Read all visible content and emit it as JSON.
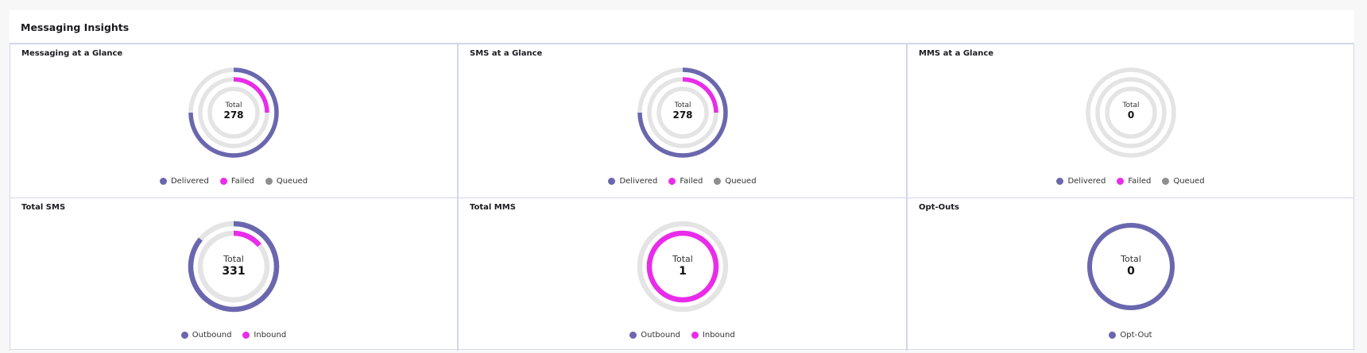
{
  "header": {
    "title": "Messaging Insights"
  },
  "colors": {
    "delivered": "#6b67ae",
    "failed": "#e92ce9",
    "queued": "#8e8e93",
    "track": "#e4e4e4"
  },
  "chart_data": [
    {
      "type": "pie",
      "title": "Messaging at a Glance",
      "center_label": "Total",
      "total": 278,
      "rings": 3,
      "series": [
        {
          "name": "Delivered",
          "value": 0.75,
          "color": "#6b67ae"
        },
        {
          "name": "Failed",
          "value": 0.25,
          "color": "#e92ce9"
        },
        {
          "name": "Queued",
          "value": 0,
          "color": "#8e8e93"
        }
      ]
    },
    {
      "type": "pie",
      "title": "SMS at a Glance",
      "center_label": "Total",
      "total": 278,
      "rings": 3,
      "series": [
        {
          "name": "Delivered",
          "value": 0.75,
          "color": "#6b67ae"
        },
        {
          "name": "Failed",
          "value": 0.25,
          "color": "#e92ce9"
        },
        {
          "name": "Queued",
          "value": 0,
          "color": "#8e8e93"
        }
      ]
    },
    {
      "type": "pie",
      "title": "MMS at a Glance",
      "center_label": "Total",
      "total": 0,
      "rings": 3,
      "series": [
        {
          "name": "Delivered",
          "value": 0,
          "color": "#6b67ae"
        },
        {
          "name": "Failed",
          "value": 0,
          "color": "#e92ce9"
        },
        {
          "name": "Queued",
          "value": 0,
          "color": "#8e8e93"
        }
      ]
    },
    {
      "type": "pie",
      "title": "Total SMS",
      "center_label": "Total",
      "total": 331,
      "rings": 2,
      "series": [
        {
          "name": "Outbound",
          "value": 0.86,
          "color": "#6b67ae"
        },
        {
          "name": "Inbound",
          "value": 0.14,
          "color": "#e92ce9"
        }
      ]
    },
    {
      "type": "pie",
      "title": "Total MMS",
      "center_label": "Total",
      "total": 1,
      "rings": 2,
      "series": [
        {
          "name": "Outbound",
          "value": 0,
          "color": "#6b67ae"
        },
        {
          "name": "Inbound",
          "value": 1,
          "color": "#e92ce9"
        }
      ]
    },
    {
      "type": "pie",
      "title": "Opt-Outs",
      "center_label": "Total",
      "total": 0,
      "rings": 1,
      "series": [
        {
          "name": "Opt-Out",
          "value": 1,
          "color": "#6b67ae"
        }
      ]
    }
  ]
}
